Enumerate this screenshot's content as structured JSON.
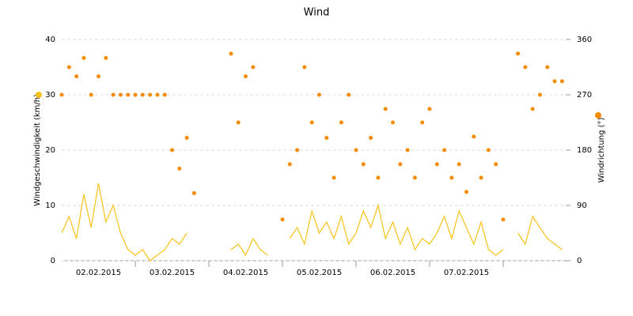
{
  "chart_data": {
    "type": "line+scatter",
    "title": "Wind",
    "x": [
      0,
      0.1,
      0.2,
      0.3,
      0.4,
      0.5,
      0.6,
      0.7,
      0.8,
      0.9,
      1,
      1.1,
      1.2,
      1.3,
      1.4,
      1.5,
      1.6,
      1.7,
      1.8,
      1.9,
      2,
      2.1,
      2.2,
      2.3,
      2.4,
      2.5,
      2.6,
      2.7,
      2.8,
      2.9,
      3,
      3.1,
      3.2,
      3.3,
      3.4,
      3.5,
      3.6,
      3.7,
      3.8,
      3.9,
      4,
      4.1,
      4.2,
      4.3,
      4.4,
      4.5,
      4.6,
      4.7,
      4.8,
      4.9,
      5,
      5.1,
      5.2,
      5.3,
      5.4,
      5.5,
      5.6,
      5.7,
      5.8,
      5.9,
      6,
      6.1,
      6.2,
      6.3,
      6.4,
      6.5,
      6.6,
      6.7,
      6.8
    ],
    "xlim": [
      0,
      6.85
    ],
    "xticks": [
      {
        "value": 0.5,
        "label": "02.02.2015"
      },
      {
        "value": 1.5,
        "label": "03.02.2015"
      },
      {
        "value": 2.5,
        "label": "04.02.2015"
      },
      {
        "value": 3.5,
        "label": "05.02.2015"
      },
      {
        "value": 4.5,
        "label": "06.02.2015"
      },
      {
        "value": 5.5,
        "label": "07.02.2015"
      }
    ],
    "ylim": [
      0,
      40
    ],
    "yticks": [
      0,
      10,
      20,
      30,
      40
    ],
    "y2lim": [
      0,
      360
    ],
    "y2ticks": [
      0,
      90,
      180,
      270,
      360
    ],
    "grid": true,
    "series": [
      {
        "name": "Windgeschwindigkeit (km/h)",
        "type": "line",
        "color": "#f7c31a",
        "values": [
          5,
          8,
          4,
          12,
          6,
          14,
          7,
          10,
          5,
          2,
          1,
          2,
          0,
          1,
          2,
          4,
          3,
          5,
          null,
          null,
          null,
          null,
          null,
          2,
          3,
          1,
          4,
          2,
          1,
          null,
          null,
          4,
          6,
          3,
          9,
          5,
          7,
          4,
          8,
          3,
          5,
          9,
          6,
          10,
          4,
          7,
          3,
          6,
          2,
          4,
          3,
          5,
          8,
          4,
          9,
          6,
          3,
          7,
          2,
          1,
          2,
          null,
          5,
          3,
          8,
          6,
          4,
          3,
          2
        ]
      },
      {
        "name": "Windrichtung (°)",
        "type": "scatter",
        "axis": "y2",
        "color": "#f68b00",
        "values": [
          270,
          315,
          300,
          330,
          270,
          300,
          330,
          270,
          270,
          270,
          270,
          270,
          270,
          270,
          270,
          180,
          150,
          200,
          110,
          null,
          null,
          null,
          null,
          337,
          225,
          300,
          315,
          null,
          null,
          null,
          67,
          157,
          180,
          315,
          225,
          270,
          200,
          135,
          225,
          270,
          180,
          157,
          200,
          135,
          247,
          225,
          157,
          180,
          135,
          225,
          247,
          157,
          180,
          135,
          157,
          112,
          202,
          135,
          180,
          157,
          67,
          null,
          337,
          315,
          247,
          270,
          315,
          292,
          292
        ]
      }
    ]
  }
}
